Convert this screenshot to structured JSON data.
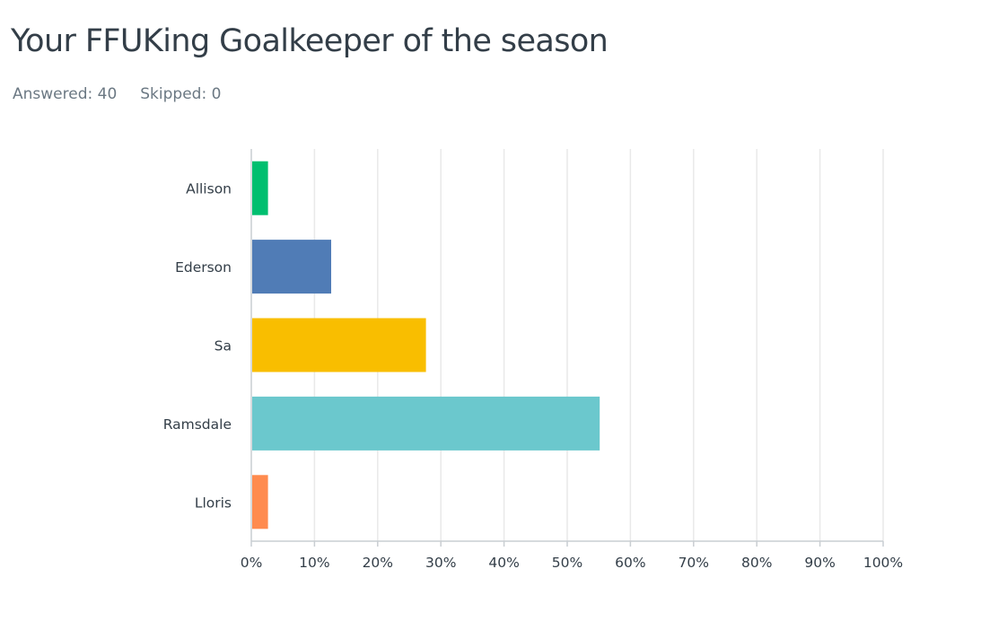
{
  "question": {
    "title": "Your FFUKing Goalkeeper of the season",
    "answered_label": "Answered:",
    "answered_count": "40",
    "skipped_label": "Skipped:",
    "skipped_count": "0"
  },
  "chart_data": {
    "type": "bar",
    "orientation": "horizontal",
    "title": "",
    "xlabel": "",
    "ylabel": "",
    "categories": [
      "Allison",
      "Ederson",
      "Sa",
      "Ramsdale",
      "Lloris"
    ],
    "values": [
      2.5,
      12.5,
      27.5,
      55,
      2.5
    ],
    "unit": "%",
    "colors": [
      "#00bf6f",
      "#507cb6",
      "#f9be00",
      "#6bc8cd",
      "#ff8b4f"
    ],
    "xlim": [
      0,
      100
    ],
    "xticks": [
      0,
      10,
      20,
      30,
      40,
      50,
      60,
      70,
      80,
      90,
      100
    ],
    "xtick_labels": [
      "0%",
      "10%",
      "20%",
      "30%",
      "40%",
      "50%",
      "60%",
      "70%",
      "80%",
      "90%",
      "100%"
    ],
    "grid": true,
    "grid_color": "#e9e9e9",
    "axis_color": "#c9ced2",
    "legend": "none"
  }
}
